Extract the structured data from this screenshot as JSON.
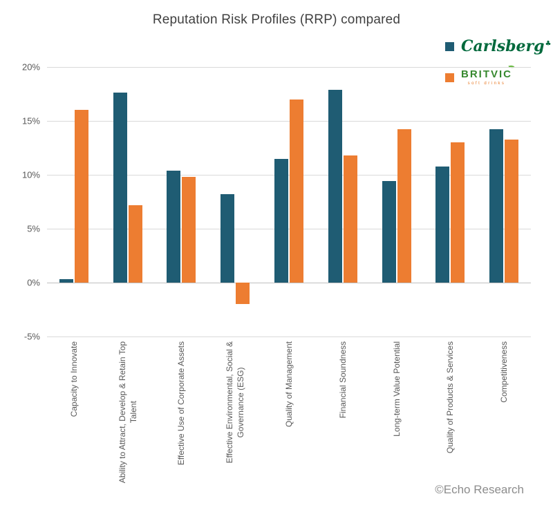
{
  "title": "Reputation Risk Profiles (RRP) compared",
  "legend": {
    "carlsberg": {
      "label": "Carlsberg",
      "logo_text": "Carlsberg",
      "hop_icon": "♣"
    },
    "britvic": {
      "label": "Britvic",
      "logo_text": "BRITVIC",
      "logo_subtext": "soft drinks"
    }
  },
  "footer": {
    "credit": "©Echo Research"
  },
  "colors": {
    "carlsberg_bar": "#1F5C73",
    "britvic_bar": "#ED7D31",
    "carlsberg_logo_green": "#00693C",
    "britvic_logo_green": "#37892F",
    "britvic_logo_orange": "#E87722",
    "gridline": "#D9D9D9",
    "zero_axis": "#BFBFBF",
    "axis_text": "#595959",
    "title_text": "#404040",
    "credit_text": "#8C8C8C"
  },
  "chart_data": {
    "type": "bar",
    "title": "Reputation Risk Profiles (RRP) compared",
    "categories": [
      "Capacity to Innovate",
      "Ability to Attract, Develop & Retain Top Talent",
      "Effective Use of Corporate Assets",
      "Effective Environmental, Social & Governance (ESG)",
      "Quality of Management",
      "Financial Soundness",
      "Long-term Value Potential",
      "Quality of Products & Services",
      "Competitiveness"
    ],
    "categories_wrapped": [
      "Capacity to Innovate",
      "Ability to Attract, Develop & Retain Top\nTalent",
      "Effective Use of Corporate Assets",
      "Effective Environmental, Social &\nGovernance (ESG)",
      "Quality of Management",
      "Financial Soundness",
      "Long-term Value Potential",
      "Quality of Products & Services",
      "Competitiveness"
    ],
    "series": [
      {
        "name": "Carlsberg",
        "color": "#1F5C73",
        "values": [
          0.3,
          17.6,
          10.4,
          8.2,
          11.5,
          17.9,
          9.4,
          10.8,
          14.2
        ]
      },
      {
        "name": "Britvic",
        "color": "#ED7D31",
        "values": [
          16.0,
          7.2,
          9.8,
          -2.0,
          17.0,
          11.8,
          14.2,
          13.0,
          13.3
        ]
      }
    ],
    "unit": "%",
    "xlabel": "",
    "ylabel": "",
    "ylim": [
      -5,
      20
    ],
    "yticks": [
      {
        "label": "20%",
        "value": 20
      },
      {
        "label": "15%",
        "value": 15
      },
      {
        "label": "10%",
        "value": 10
      },
      {
        "label": "5%",
        "value": 5
      },
      {
        "label": "0%",
        "value": 0
      },
      {
        "label": "-5%",
        "value": -5
      }
    ],
    "grid": true,
    "legend_position": "top-right"
  }
}
